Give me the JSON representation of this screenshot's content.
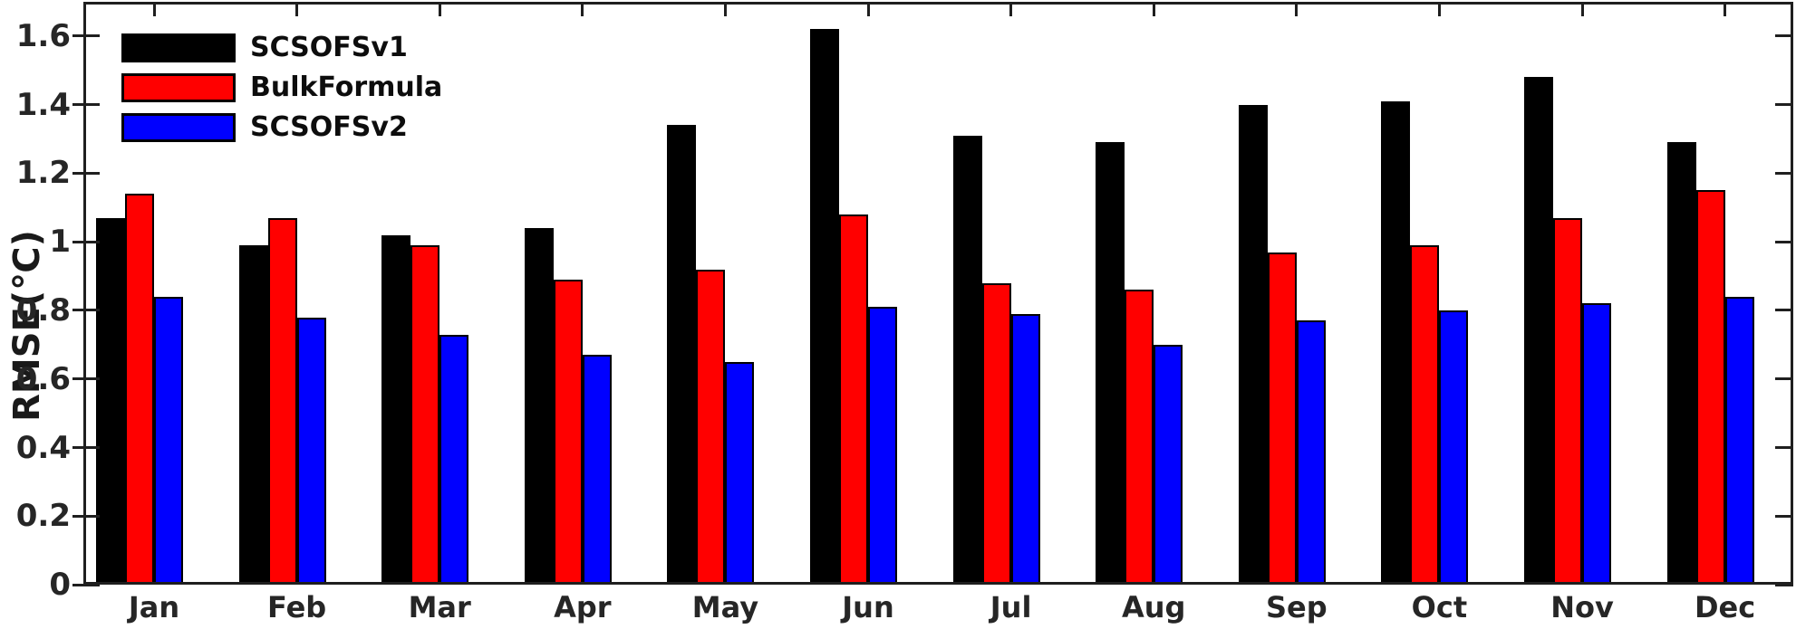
{
  "chart_data": {
    "type": "bar",
    "title": "",
    "xlabel": "",
    "ylabel": "RMSE(℃)",
    "categories": [
      "Jan",
      "Feb",
      "Mar",
      "Apr",
      "May",
      "Jun",
      "Jul",
      "Aug",
      "Sep",
      "Oct",
      "Nov",
      "Dec"
    ],
    "series": [
      {
        "name": "SCSOFSv1",
        "color": "#000000",
        "values": [
          1.07,
          0.99,
          1.02,
          1.04,
          1.34,
          1.62,
          1.31,
          1.29,
          1.4,
          1.41,
          1.48,
          1.29
        ]
      },
      {
        "name": "BulkFormula",
        "color": "#ff0000",
        "values": [
          1.14,
          1.07,
          0.99,
          0.89,
          0.92,
          1.08,
          0.88,
          0.86,
          0.97,
          0.99,
          1.07,
          1.15
        ]
      },
      {
        "name": "SCSOFSv2",
        "color": "#0000ff",
        "values": [
          0.84,
          0.78,
          0.73,
          0.67,
          0.65,
          0.81,
          0.79,
          0.7,
          0.77,
          0.8,
          0.82,
          0.84
        ]
      }
    ],
    "ylim": [
      0,
      1.7
    ],
    "ytick_labels": [
      "0",
      "0.2",
      "0.4",
      "0.6",
      "0.8",
      "1",
      "1.2",
      "1.4",
      "1.6"
    ],
    "legend_position": "top-left",
    "grid": false,
    "axis_color": "#1f1f1f",
    "text_color": "#262626"
  }
}
